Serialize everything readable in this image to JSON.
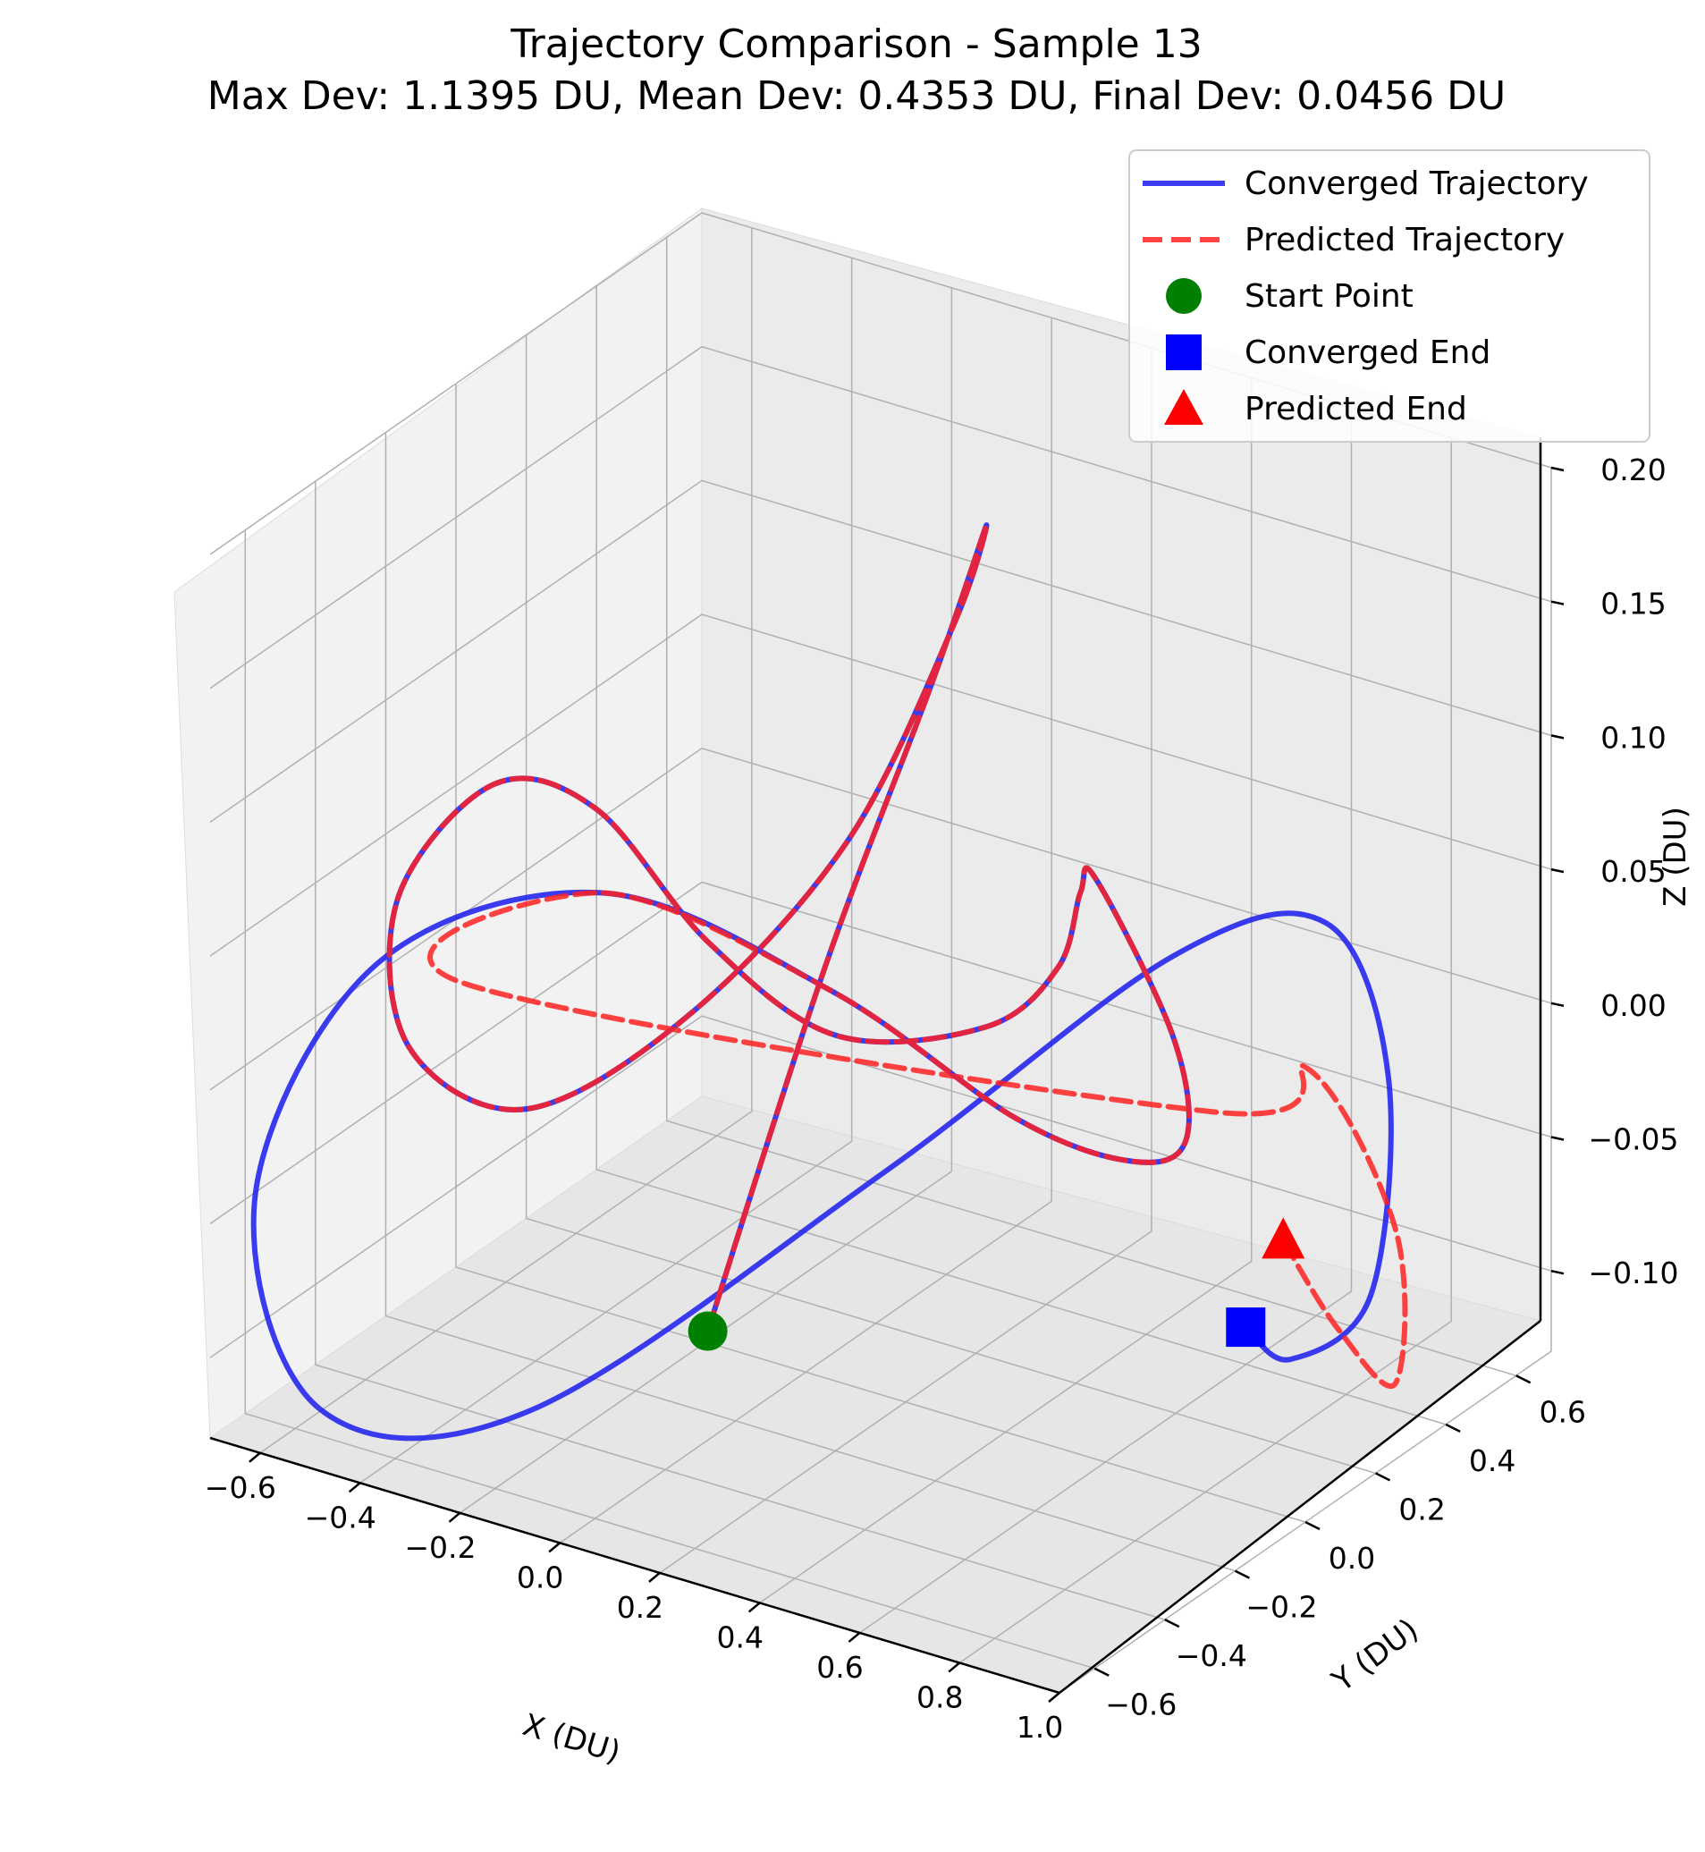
{
  "chart_data": {
    "type": "line3d",
    "title": "Trajectory Comparison - Sample 13",
    "subtitle": "Max Dev: 1.1395 DU, Mean Dev: 0.4353 DU, Final Dev: 0.0456 DU",
    "xlabel": "X (DU)",
    "ylabel": "Y (DU)",
    "zlabel": "Z (DU)",
    "xticks": [
      "−0.6",
      "−0.4",
      "−0.2",
      "0.0",
      "0.2",
      "0.4",
      "0.6",
      "0.8",
      "1.0"
    ],
    "yticks": [
      "−0.6",
      "−0.4",
      "−0.2",
      "0.0",
      "0.2",
      "0.4",
      "0.6"
    ],
    "zticks": [
      "−0.10",
      "−0.05",
      "0.00",
      "0.05",
      "0.10",
      "0.15",
      "0.20"
    ],
    "xlim": [
      -0.7,
      1.0
    ],
    "ylim": [
      -0.7,
      0.7
    ],
    "zlim": [
      -0.13,
      0.2
    ],
    "grid": true,
    "legend_position": "top-right",
    "legend": [
      {
        "label": "Converged Trajectory",
        "marker": "line",
        "color": "#1a1aee"
      },
      {
        "label": "Predicted Trajectory",
        "marker": "dashed-line",
        "color": "#ff2222"
      },
      {
        "label": "Start Point",
        "marker": "circle",
        "color": "#008000"
      },
      {
        "label": "Converged End",
        "marker": "square",
        "color": "#0000ff"
      },
      {
        "label": "Predicted End",
        "marker": "triangle",
        "color": "#ff0000"
      }
    ],
    "series": [
      {
        "name": "Converged Trajectory",
        "color": "#1a1aee",
        "style": "solid",
        "points": [
          [
            0.05,
            -0.35,
            -0.08
          ],
          [
            0.18,
            -0.2,
            0.05
          ],
          [
            0.25,
            0.0,
            0.14
          ],
          [
            0.22,
            0.2,
            0.18
          ],
          [
            0.05,
            0.35,
            0.12
          ],
          [
            -0.2,
            0.4,
            0.02
          ],
          [
            -0.45,
            0.3,
            -0.05
          ],
          [
            -0.6,
            0.05,
            -0.07
          ],
          [
            -0.62,
            -0.25,
            -0.02
          ],
          [
            -0.5,
            -0.45,
            0.06
          ],
          [
            -0.38,
            -0.35,
            0.1
          ],
          [
            -0.35,
            -0.1,
            0.07
          ],
          [
            -0.3,
            0.15,
            0.0
          ],
          [
            -0.15,
            0.3,
            -0.04
          ],
          [
            0.15,
            0.3,
            -0.02
          ],
          [
            0.4,
            0.15,
            0.03
          ],
          [
            0.55,
            0.0,
            0.08
          ],
          [
            0.65,
            -0.1,
            0.1
          ],
          [
            0.7,
            0.05,
            0.03
          ],
          [
            0.55,
            0.3,
            -0.04
          ],
          [
            0.3,
            0.5,
            -0.08
          ],
          [
            0.0,
            0.6,
            -0.09
          ],
          [
            -0.3,
            0.5,
            -0.05
          ],
          [
            -0.55,
            0.2,
            0.0
          ],
          [
            -0.72,
            -0.2,
            0.0
          ],
          [
            -0.75,
            -0.5,
            -0.06
          ],
          [
            -0.55,
            -0.6,
            -0.12
          ],
          [
            -0.2,
            -0.5,
            -0.11
          ],
          [
            0.3,
            -0.2,
            -0.02
          ],
          [
            0.7,
            0.05,
            0.06
          ],
          [
            0.9,
            0.2,
            0.07
          ],
          [
            0.92,
            0.35,
            0.0
          ],
          [
            0.85,
            0.4,
            -0.09
          ],
          [
            0.76,
            0.3,
            -0.11
          ],
          [
            0.74,
            0.2,
            -0.09
          ]
        ]
      },
      {
        "name": "Predicted Trajectory",
        "color": "#ff2222",
        "style": "dashed",
        "points": [
          [
            0.05,
            -0.35,
            -0.08
          ],
          [
            0.18,
            -0.2,
            0.05
          ],
          [
            0.25,
            0.0,
            0.14
          ],
          [
            0.22,
            0.2,
            0.18
          ],
          [
            0.05,
            0.35,
            0.12
          ],
          [
            -0.2,
            0.4,
            0.02
          ],
          [
            -0.45,
            0.3,
            -0.05
          ],
          [
            -0.6,
            0.05,
            -0.07
          ],
          [
            -0.62,
            -0.25,
            -0.02
          ],
          [
            -0.5,
            -0.45,
            0.06
          ],
          [
            -0.38,
            -0.35,
            0.1
          ],
          [
            -0.35,
            -0.1,
            0.07
          ],
          [
            -0.3,
            0.15,
            0.0
          ],
          [
            -0.15,
            0.3,
            -0.04
          ],
          [
            0.15,
            0.3,
            -0.02
          ],
          [
            0.4,
            0.15,
            0.03
          ],
          [
            0.55,
            0.0,
            0.08
          ],
          [
            0.65,
            -0.1,
            0.1
          ],
          [
            0.7,
            0.05,
            0.03
          ],
          [
            0.55,
            0.3,
            -0.04
          ],
          [
            0.3,
            0.5,
            -0.08
          ],
          [
            0.0,
            0.6,
            -0.09
          ],
          [
            -0.3,
            0.5,
            -0.05
          ],
          [
            -0.55,
            0.2,
            0.0
          ],
          [
            -0.62,
            -0.1,
            -0.01
          ],
          [
            0.75,
            0.1,
            0.0
          ],
          [
            0.9,
            0.15,
            0.02
          ],
          [
            0.97,
            0.3,
            -0.05
          ],
          [
            0.9,
            0.4,
            -0.12
          ],
          [
            0.82,
            0.35,
            -0.1
          ],
          [
            0.78,
            0.25,
            -0.06
          ]
        ]
      }
    ],
    "markers": [
      {
        "name": "Start Point",
        "shape": "circle",
        "color": "#008000",
        "xyz": [
          0.05,
          -0.35,
          -0.08
        ]
      },
      {
        "name": "Converged End",
        "shape": "square",
        "color": "#0000ff",
        "xyz": [
          0.74,
          0.2,
          -0.09
        ]
      },
      {
        "name": "Predicted End",
        "shape": "triangle",
        "color": "#ff0000",
        "xyz": [
          0.78,
          0.25,
          -0.06
        ]
      }
    ]
  }
}
